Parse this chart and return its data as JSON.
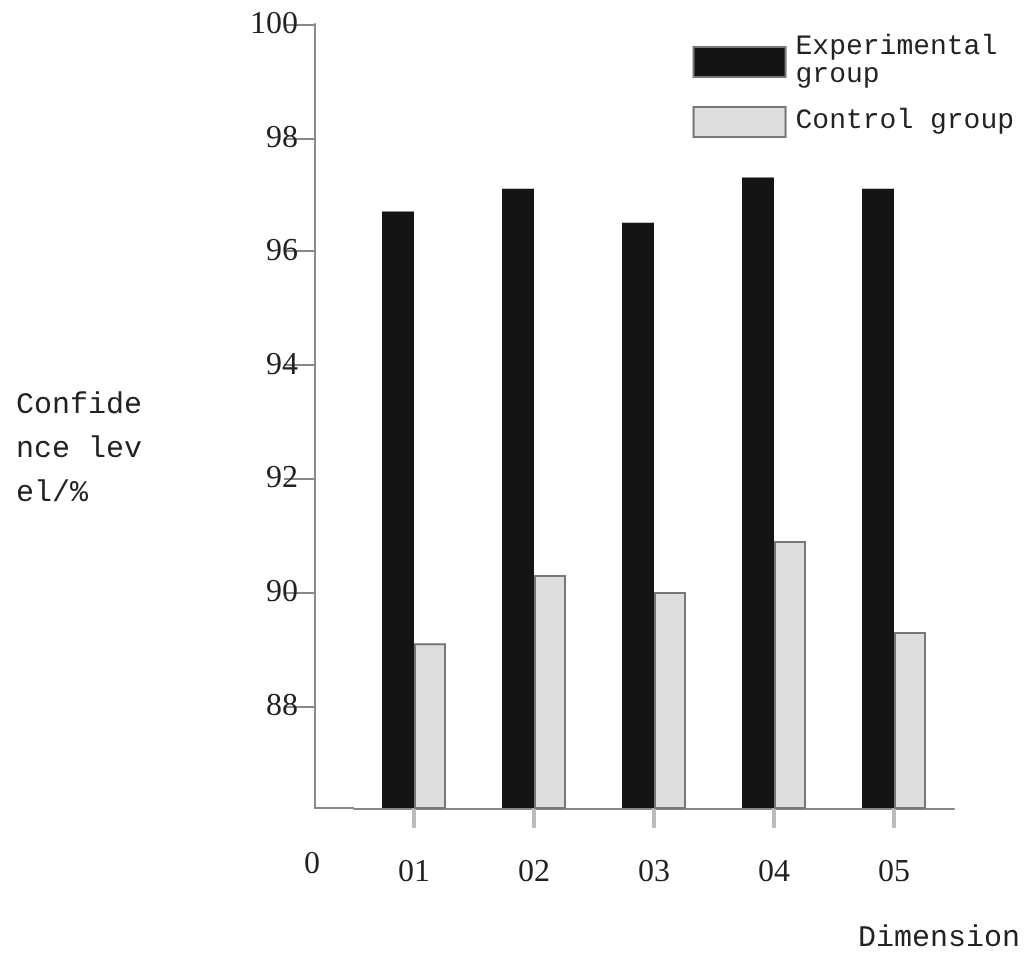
{
  "chart_data": {
    "type": "bar",
    "xlabel": "Dimension",
    "ylabel": "Confidence level/%",
    "categories": [
      "01",
      "02",
      "03",
      "04",
      "05"
    ],
    "series": [
      {
        "name": "Experimental group",
        "color": "#141414",
        "values": [
          96.7,
          97.1,
          96.5,
          97.3,
          97.1
        ]
      },
      {
        "name": "Control group",
        "color": "#dedede",
        "values": [
          89.1,
          90.3,
          90.0,
          90.9,
          89.3
        ]
      }
    ],
    "ylim": [
      86.2,
      100
    ],
    "yticks": [
      88,
      90,
      92,
      94,
      96,
      98,
      100
    ],
    "annotations": [
      "0"
    ],
    "grid": false,
    "legend": "top right"
  }
}
